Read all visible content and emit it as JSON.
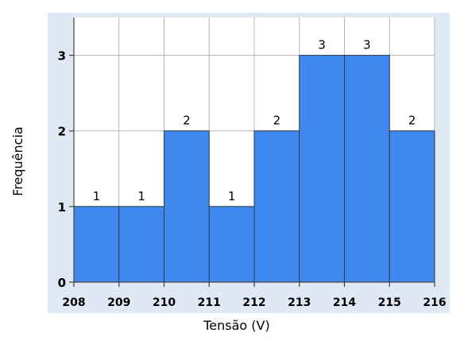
{
  "chart_data": {
    "type": "bar",
    "title": "",
    "xlabel": "Tensão (V)",
    "ylabel": "Frequência",
    "categories": [
      "208",
      "209",
      "210",
      "211",
      "212",
      "213",
      "214",
      "215",
      "216"
    ],
    "bins": [
      {
        "from": 208,
        "to": 209,
        "value": 1
      },
      {
        "from": 209,
        "to": 210,
        "value": 1
      },
      {
        "from": 210,
        "to": 211,
        "value": 2
      },
      {
        "from": 211,
        "to": 212,
        "value": 1
      },
      {
        "from": 212,
        "to": 213,
        "value": 2
      },
      {
        "from": 213,
        "to": 214,
        "value": 3
      },
      {
        "from": 214,
        "to": 215,
        "value": 3
      },
      {
        "from": 215,
        "to": 216,
        "value": 2
      }
    ],
    "x_ticks": [
      208,
      209,
      210,
      211,
      212,
      213,
      214,
      215,
      216
    ],
    "y_ticks": [
      0,
      1,
      2,
      3
    ],
    "xlim": [
      208,
      216
    ],
    "ylim": [
      0,
      3.5
    ],
    "grid": true,
    "legend": "none",
    "colors": {
      "bar_fill": "#3f88ee",
      "bar_stroke": "#2f3a48",
      "plot_background": "#ffffff",
      "frame_background": "#dfe8f3",
      "grid": "#b5b5b5",
      "text": "#000000"
    }
  }
}
